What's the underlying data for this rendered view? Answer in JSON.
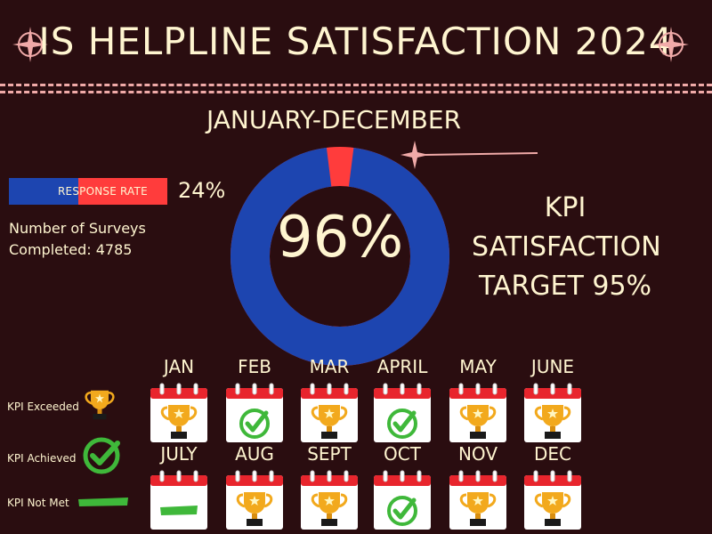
{
  "title": "IS HELPLINE SATISFACTION 2024",
  "period": "JANUARY-DECEMBER",
  "satisfaction": {
    "value_text": "96%",
    "value": 96
  },
  "kpi": {
    "line1": "KPI",
    "line2": "SATISFACTION",
    "line3": "TARGET 95%"
  },
  "response_rate": {
    "label": "RESPONSE RATE",
    "value_text": "24%",
    "value": 24
  },
  "surveys": {
    "line1": "Number of Surveys",
    "line2": "Completed: 4785"
  },
  "legend": {
    "exceeded": "KPI Exceeded",
    "achieved": "KPI Achieved",
    "not_met": "KPI Not Met"
  },
  "months": [
    {
      "label": "JAN",
      "status": "exceeded"
    },
    {
      "label": "FEB",
      "status": "achieved"
    },
    {
      "label": "MAR",
      "status": "exceeded"
    },
    {
      "label": "APRIL",
      "status": "achieved"
    },
    {
      "label": "MAY",
      "status": "exceeded"
    },
    {
      "label": "JUNE",
      "status": "exceeded"
    },
    {
      "label": "JULY",
      "status": "not_met"
    },
    {
      "label": "AUG",
      "status": "exceeded"
    },
    {
      "label": "SEPT",
      "status": "exceeded"
    },
    {
      "label": "OCT",
      "status": "achieved"
    },
    {
      "label": "NOV",
      "status": "exceeded"
    },
    {
      "label": "DEC",
      "status": "exceeded"
    }
  ],
  "colors": {
    "background": "#2a0d10",
    "accent_red": "#ff3c3c",
    "blue": "#1d45b0",
    "cream": "#fff5d0",
    "pink": "#f0aaa8",
    "gold": "#f2a91d",
    "green": "#3fb83a"
  },
  "icons": {
    "exceeded": "trophy-icon",
    "achieved": "check-circle-icon",
    "not_met": "green-bar-icon"
  }
}
